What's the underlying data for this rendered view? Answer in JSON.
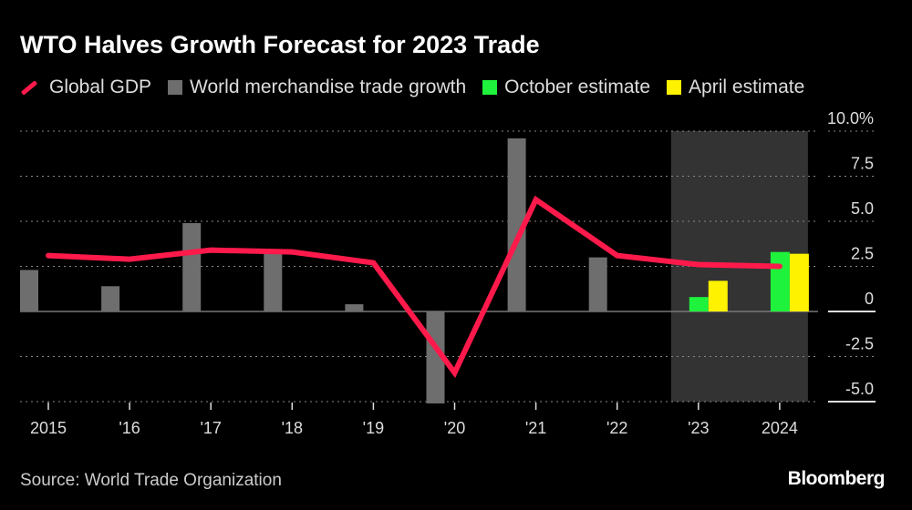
{
  "title": "WTO Halves Growth Forecast for 2023 Trade",
  "source": "Source: World Trade Organization",
  "brand": "Bloomberg",
  "chart_data": {
    "type": "bar",
    "title": "WTO Halves Growth Forecast for 2023 Trade",
    "categories": [
      "2015",
      "'16",
      "'17",
      "'18",
      "'19",
      "'20",
      "'21",
      "'22",
      "'23",
      "2024"
    ],
    "series": [
      {
        "name": "Global GDP",
        "kind": "line",
        "color": "#ff1a4b",
        "values": [
          3.1,
          2.9,
          3.4,
          3.3,
          2.7,
          -3.4,
          6.2,
          3.1,
          2.6,
          2.5
        ]
      },
      {
        "name": "World merchandise trade growth",
        "kind": "bar",
        "color": "#6e6e6e",
        "values": [
          2.3,
          1.4,
          4.9,
          3.2,
          0.4,
          -5.1,
          9.6,
          3.0,
          null,
          null
        ]
      },
      {
        "name": "October estimate",
        "kind": "bar",
        "color": "#1ef23c",
        "values": [
          null,
          null,
          null,
          null,
          null,
          null,
          null,
          null,
          0.8,
          3.3
        ]
      },
      {
        "name": "April estimate",
        "kind": "bar",
        "color": "#fff200",
        "values": [
          null,
          null,
          null,
          null,
          null,
          null,
          null,
          null,
          1.7,
          3.2
        ]
      }
    ],
    "y_ticks": [
      "10.0%",
      "7.5",
      "5.0",
      "2.5",
      "0",
      "-2.5",
      "-5.0"
    ],
    "y_tick_values": [
      10,
      7.5,
      5,
      2.5,
      0,
      -2.5,
      -5
    ],
    "ylim": [
      -5,
      10
    ],
    "y_axis_side": "right",
    "grid": true,
    "shaded_categories": [
      "'23",
      "2024"
    ],
    "shade_color": "#333333",
    "legend_placement": "top-left"
  }
}
